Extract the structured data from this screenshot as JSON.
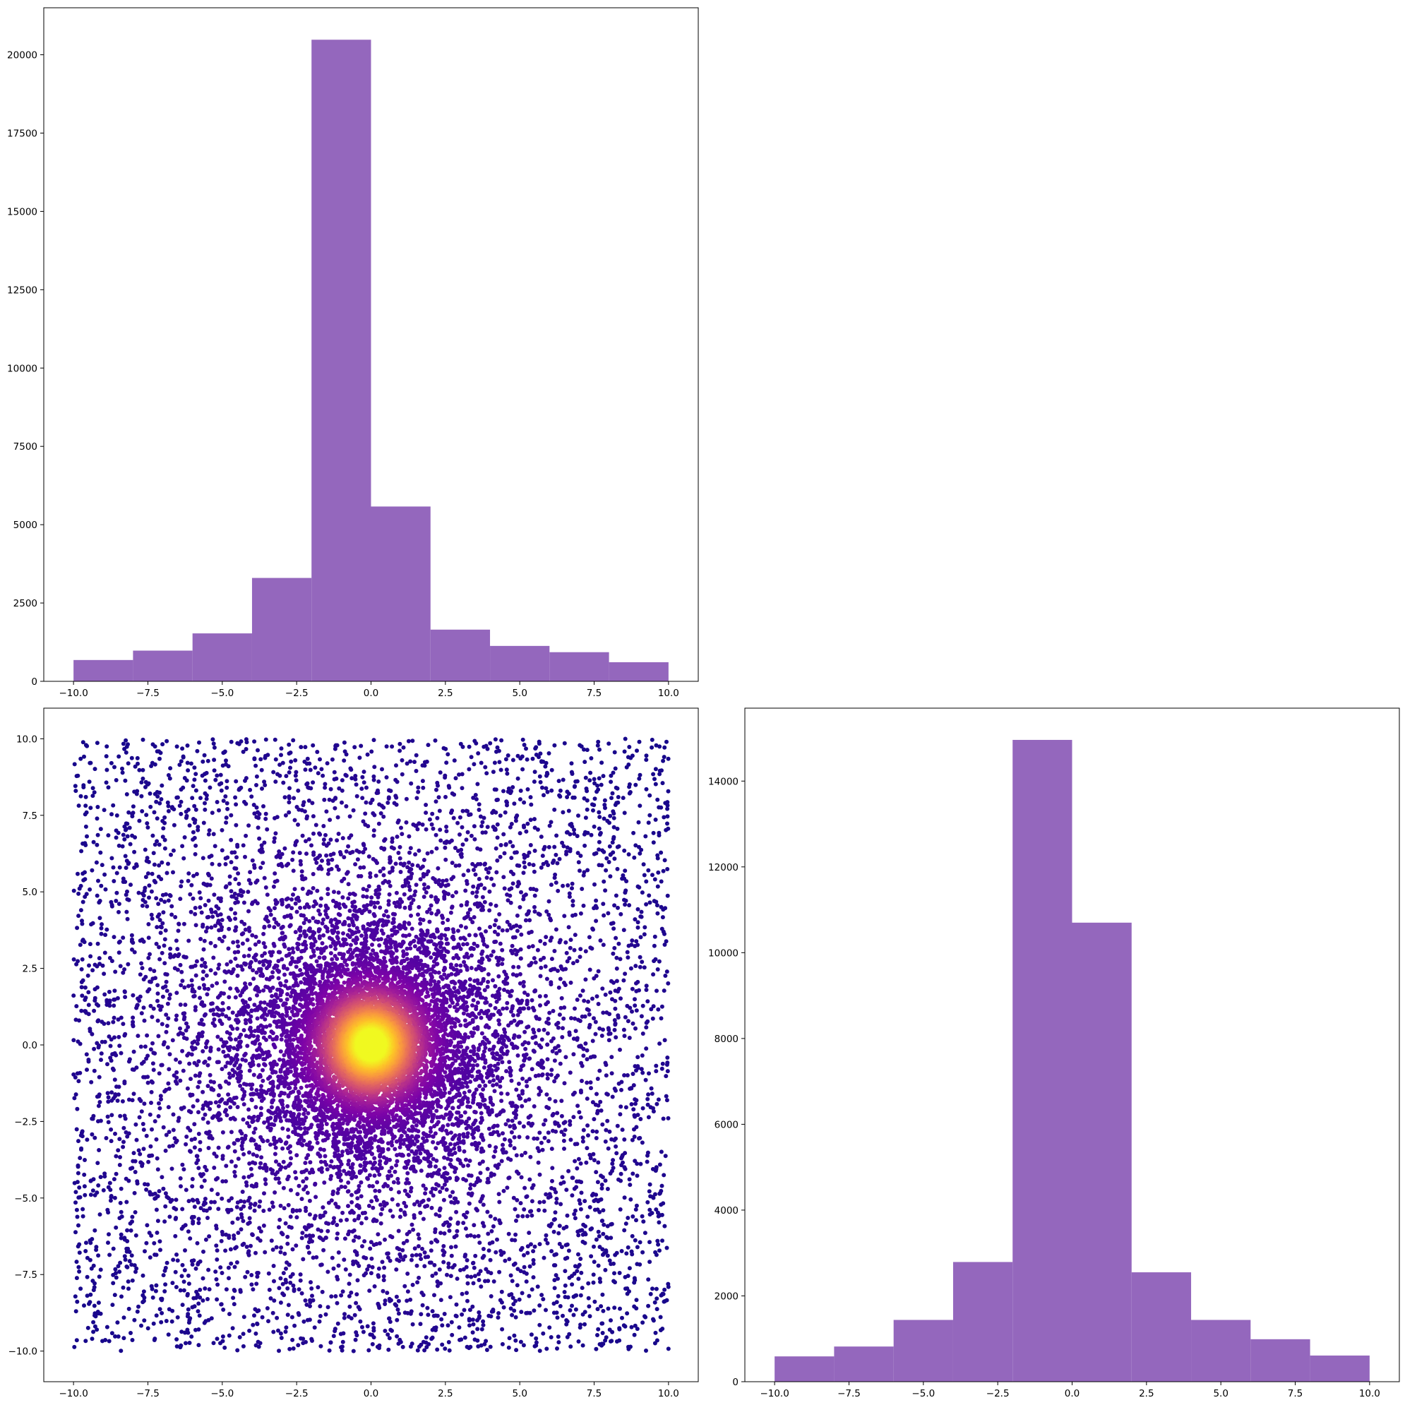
{
  "colors": {
    "hist_bar": "#9467bd",
    "scatter_colormap": "plasma",
    "axes_frame": "#000000"
  },
  "chart_data": [
    {
      "type": "bar",
      "panel": "top-left",
      "title": "",
      "xlabel": "",
      "ylabel": "",
      "bin_edges": [
        -10,
        -8,
        -6,
        -4,
        -2,
        0,
        2,
        4,
        6,
        8,
        10
      ],
      "values": [
        680,
        980,
        1530,
        3300,
        20480,
        5580,
        1650,
        1130,
        930,
        610
      ],
      "xlim": [
        -11.0,
        11.0
      ],
      "ylim": [
        0,
        21500
      ],
      "xticks": [
        -10.0,
        -7.5,
        -5.0,
        -2.5,
        0.0,
        2.5,
        5.0,
        7.5,
        10.0
      ],
      "xtick_labels": [
        "−10.0",
        "−7.5",
        "−5.0",
        "−2.5",
        "0.0",
        "2.5",
        "5.0",
        "7.5",
        "10.0"
      ],
      "yticks": [
        0,
        2500,
        5000,
        7500,
        10000,
        12500,
        15000,
        17500,
        20000
      ],
      "ytick_labels": [
        "0",
        "2500",
        "5000",
        "7500",
        "10000",
        "12500",
        "15000",
        "17500",
        "20000"
      ],
      "grid": false
    },
    {
      "type": "scatter",
      "panel": "bottom-left",
      "title": "",
      "xlabel": "",
      "ylabel": "",
      "description_of_points": "dense cloud of points over the square [-10,10]x[-10,10], concentrated near the origin; point color follows local density on the plasma colormap (dark purple at low density, yellow at the center)",
      "x_range": [
        -10,
        10
      ],
      "y_range": [
        -10,
        10
      ],
      "center": [
        0,
        0
      ],
      "xlim": [
        -11.0,
        11.0
      ],
      "ylim": [
        -11.0,
        11.0
      ],
      "xticks": [
        -10.0,
        -7.5,
        -5.0,
        -2.5,
        0.0,
        2.5,
        5.0,
        7.5,
        10.0
      ],
      "xtick_labels": [
        "−10.0",
        "−7.5",
        "−5.0",
        "−2.5",
        "0.0",
        "2.5",
        "5.0",
        "7.5",
        "10.0"
      ],
      "yticks": [
        -10.0,
        -7.5,
        -5.0,
        -2.5,
        0.0,
        2.5,
        5.0,
        7.5,
        10.0
      ],
      "ytick_labels": [
        "−10.0",
        "−7.5",
        "−5.0",
        "−2.5",
        "0.0",
        "2.5",
        "5.0",
        "7.5",
        "10.0"
      ],
      "grid": false
    },
    {
      "type": "bar",
      "panel": "bottom-right",
      "title": "",
      "xlabel": "",
      "ylabel": "",
      "bin_edges": [
        -10,
        -8,
        -6,
        -4,
        -2,
        0,
        2,
        4,
        6,
        8,
        10
      ],
      "values": [
        590,
        820,
        1440,
        2790,
        14960,
        10700,
        2550,
        1440,
        990,
        610
      ],
      "xlim": [
        -11.0,
        11.0
      ],
      "ylim": [
        0,
        15700
      ],
      "xticks": [
        -10.0,
        -7.5,
        -5.0,
        -2.5,
        0.0,
        2.5,
        5.0,
        7.5,
        10.0
      ],
      "xtick_labels": [
        "−10.0",
        "−7.5",
        "−5.0",
        "−2.5",
        "0.0",
        "2.5",
        "5.0",
        "7.5",
        "10.0"
      ],
      "yticks": [
        0,
        2000,
        4000,
        6000,
        8000,
        10000,
        12000,
        14000
      ],
      "ytick_labels": [
        "0",
        "2000",
        "4000",
        "6000",
        "8000",
        "10000",
        "12000",
        "14000"
      ],
      "grid": false
    }
  ]
}
